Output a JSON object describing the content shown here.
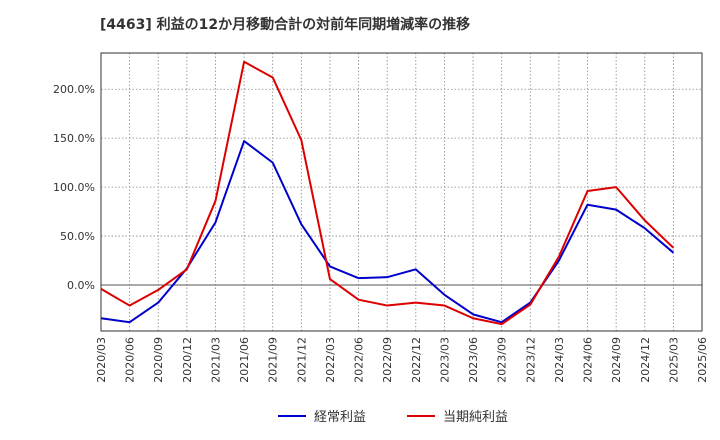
{
  "chart_data": {
    "type": "line",
    "title": "[4463]  利益の12か月移動合計の対前年同期増減率の推移",
    "x": [
      "2020/03",
      "2020/06",
      "2020/09",
      "2020/12",
      "2021/03",
      "2021/06",
      "2021/09",
      "2021/12",
      "2022/03",
      "2022/06",
      "2022/09",
      "2022/12",
      "2023/03",
      "2023/06",
      "2023/09",
      "2023/12",
      "2024/03",
      "2024/06",
      "2024/09",
      "2024/12",
      "2025/03",
      "2025/06"
    ],
    "x_ticks": [
      "2020/03",
      "2020/06",
      "2020/09",
      "2020/12",
      "2021/03",
      "2021/06",
      "2021/09",
      "2021/12",
      "2022/03",
      "2022/06",
      "2022/09",
      "2022/12",
      "2023/03",
      "2023/06",
      "2023/09",
      "2023/12",
      "2024/03",
      "2024/06",
      "2024/09",
      "2024/12",
      "2025/03",
      "2025/06"
    ],
    "y_ticks": [
      0,
      50,
      100,
      150,
      200
    ],
    "y_tick_labels": [
      "0.0%",
      "50.0%",
      "100.0%",
      "150.0%",
      "200.0%"
    ],
    "ylim": [
      -47,
      237
    ],
    "grid": true,
    "legend_position": "bottom",
    "series": [
      {
        "name": "経常利益",
        "color": "#0000cc",
        "values": [
          -34,
          -38,
          -18,
          17,
          64,
          147,
          125,
          62,
          19,
          7,
          8,
          16,
          -10,
          -30,
          -38,
          -18,
          25,
          82,
          77,
          58,
          33,
          null
        ]
      },
      {
        "name": "当期純利益",
        "color": "#dd0000",
        "values": [
          -4,
          -21,
          -5,
          16,
          86,
          228,
          212,
          148,
          6,
          -15,
          -21,
          -18,
          -21,
          -34,
          -40,
          -20,
          29,
          96,
          100,
          66,
          38,
          null
        ]
      }
    ]
  }
}
